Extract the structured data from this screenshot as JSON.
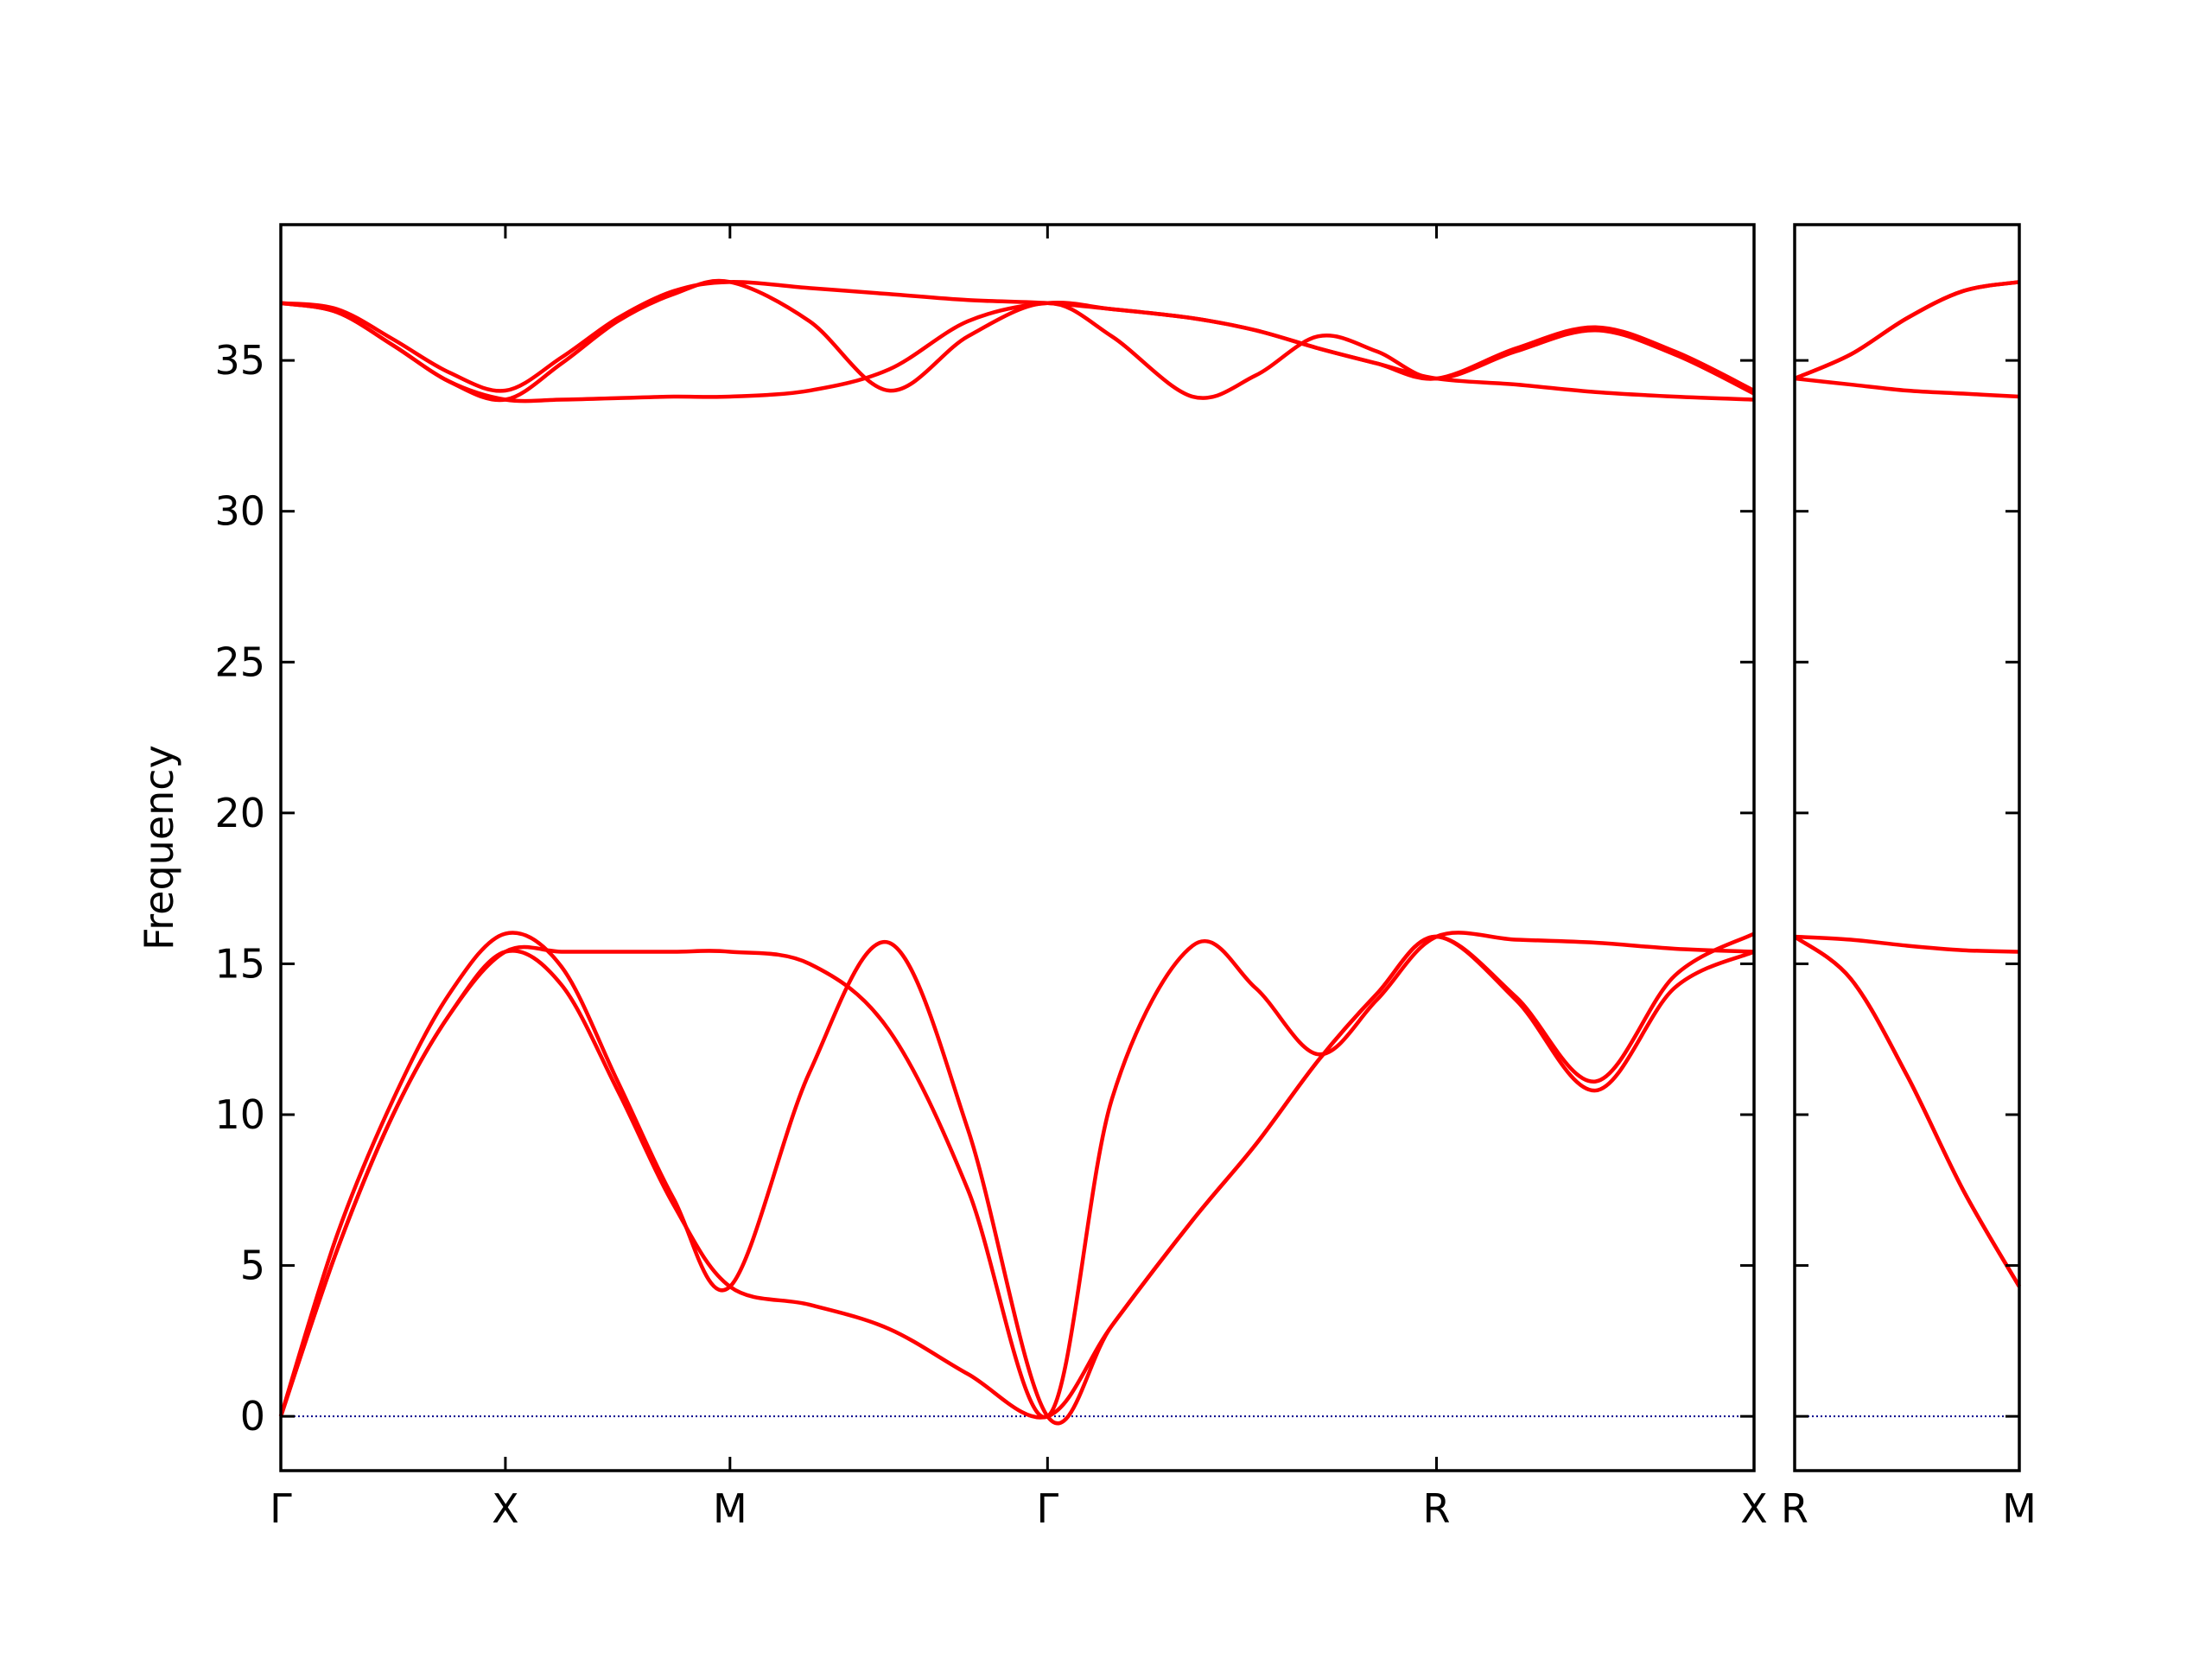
{
  "chart_data": [
    {
      "type": "line",
      "ylabel": "Frequency",
      "x": [
        0,
        0.125,
        0.25,
        0.375,
        0.5,
        0.625,
        0.75,
        0.875,
        1.0,
        1.177,
        1.354,
        1.53,
        1.707,
        1.85,
        2.03,
        2.17,
        2.31,
        2.44,
        2.573,
        2.75,
        2.927,
        3.103,
        3.28
      ],
      "series": [
        {
          "color": "#ff0000",
          "values": [
            0,
            5.5,
            10.0,
            13.3,
            15.4,
            14.3,
            10.8,
            7.0,
            4.3,
            3.7,
            2.9,
            1.4,
            0,
            3.0,
            6.5,
            9.0,
            11.8,
            14.0,
            15.9,
            13.8,
            10.8,
            14.2,
            15.4
          ]
        },
        {
          "color": "#ff0000",
          "values": [
            0,
            6.0,
            10.5,
            14.0,
            16.0,
            14.9,
            11.1,
            7.2,
            4.3,
            11.4,
            15.7,
            9.5,
            0,
            3.0,
            6.5,
            9.0,
            11.8,
            14.0,
            15.9,
            13.9,
            11.1,
            14.6,
            16.0
          ]
        },
        {
          "color": "#ff0000",
          "values": [
            0,
            5.5,
            10.0,
            13.3,
            15.4,
            15.4,
            15.4,
            15.4,
            15.4,
            15.0,
            12.8,
            7.5,
            0,
            10.5,
            15.6,
            14.2,
            12.0,
            13.8,
            15.9,
            15.8,
            15.7,
            15.5,
            15.4
          ]
        },
        {
          "color": "#ff0000",
          "values": [
            36.9,
            36.6,
            35.5,
            34.3,
            33.7,
            33.7,
            33.75,
            33.8,
            33.8,
            34.0,
            34.7,
            36.3,
            36.9,
            36.7,
            36.4,
            36.0,
            35.4,
            34.9,
            34.4,
            34.2,
            33.95,
            33.8,
            33.7
          ]
        },
        {
          "color": "#ff0000",
          "values": [
            36.9,
            36.6,
            35.5,
            34.3,
            33.7,
            34.9,
            36.3,
            37.2,
            37.6,
            36.3,
            34.0,
            35.8,
            36.9,
            35.8,
            33.8,
            34.5,
            35.8,
            35.3,
            34.4,
            35.3,
            36.0,
            35.2,
            33.9
          ]
        },
        {
          "color": "#ff0000",
          "values": [
            36.9,
            36.7,
            35.7,
            34.6,
            34.0,
            35.1,
            36.4,
            37.3,
            37.6,
            37.4,
            37.2,
            37.0,
            36.9,
            36.7,
            36.4,
            36.0,
            35.4,
            34.9,
            34.4,
            35.4,
            36.1,
            35.3,
            34.0
          ]
        }
      ],
      "xlim": [
        0,
        3.28
      ],
      "ylim": [
        -1.8,
        39.5
      ],
      "xticks": [
        {
          "value": 0,
          "label": "Γ"
        },
        {
          "value": 0.5,
          "label": "X"
        },
        {
          "value": 1.0,
          "label": "M"
        },
        {
          "value": 1.707,
          "label": "Γ"
        },
        {
          "value": 2.573,
          "label": "R"
        },
        {
          "value": 3.28,
          "label": "X"
        }
      ],
      "yticks": [
        0,
        5,
        10,
        15,
        20,
        25,
        30,
        35
      ],
      "ytick_labels": true,
      "hline": {
        "y": 0,
        "color": "#00008b"
      }
    },
    {
      "type": "line",
      "x": [
        0,
        0.125,
        0.25,
        0.375,
        0.5
      ],
      "series": [
        {
          "color": "#ff0000",
          "values": [
            15.9,
            14.5,
            11.3,
            7.5,
            4.3
          ]
        },
        {
          "color": "#ff0000",
          "values": [
            15.9,
            14.5,
            11.3,
            7.5,
            4.3
          ]
        },
        {
          "color": "#ff0000",
          "values": [
            15.9,
            15.8,
            15.6,
            15.45,
            15.4
          ]
        },
        {
          "color": "#ff0000",
          "values": [
            34.4,
            34.2,
            34.0,
            33.9,
            33.8
          ]
        },
        {
          "color": "#ff0000",
          "values": [
            34.4,
            35.2,
            36.4,
            37.3,
            37.6
          ]
        },
        {
          "color": "#ff0000",
          "values": [
            34.4,
            35.2,
            36.4,
            37.3,
            37.6
          ]
        }
      ],
      "xlim": [
        0,
        0.5
      ],
      "ylim": [
        -1.8,
        39.5
      ],
      "xticks": [
        {
          "value": 0,
          "label": "R"
        },
        {
          "value": 0.5,
          "label": "M"
        }
      ],
      "yticks": [
        0,
        5,
        10,
        15,
        20,
        25,
        30,
        35
      ],
      "ytick_labels": false,
      "hline": {
        "y": 0,
        "color": "#00008b"
      }
    }
  ]
}
